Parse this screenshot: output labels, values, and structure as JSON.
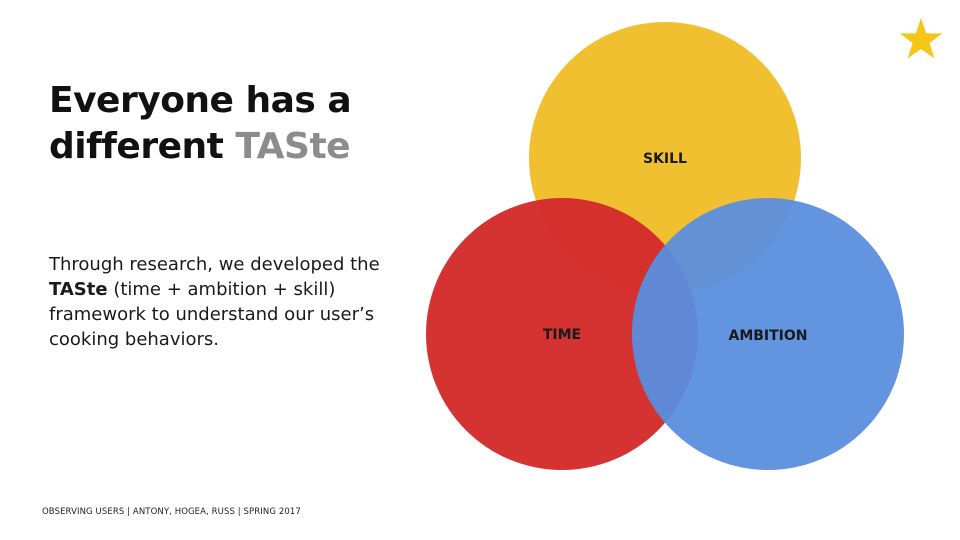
{
  "slide": {
    "title_line1": "Everyone has a",
    "title_prefix": "different ",
    "title_highlight": "TASte",
    "body_pre": "Through research, we developed the ",
    "body_bold": "TASte",
    "body_post": " (time + ambition + skill) framework to understand our user’s cooking behaviors.",
    "footer": "OBSERVING USERS | ANTONY, HOGEA, RUSS | SPRING 2017"
  },
  "venn": {
    "circles": [
      {
        "label": "SKILL",
        "color": "#f0c030"
      },
      {
        "label": "TIME",
        "color": "#d42b2b"
      },
      {
        "label": "AMBITION",
        "color": "#5a8ede"
      }
    ]
  },
  "colors": {
    "title": "#111111",
    "highlight": "#8c8c8c",
    "star": "#f5c518"
  },
  "icons": {
    "star": "star-icon"
  }
}
